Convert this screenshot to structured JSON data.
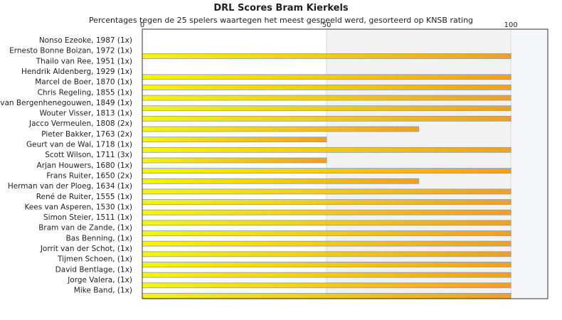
{
  "chart_data": {
    "type": "bar",
    "orientation": "horizontal",
    "title": "DRL Scores Bram Kierkels",
    "subtitle": "Percentages tegen de 25 spelers waartegen het meest gespeeld werd, gesorteerd op KNSB rating",
    "xlim": [
      0,
      110
    ],
    "x_ticks": [
      "0",
      "50",
      "100"
    ],
    "grid": "vertical",
    "legend": "none",
    "colors": {
      "bar_start": "#f5f50a",
      "bar_end": "#f0a020",
      "bar_border": "#8a9ab5",
      "band": "#f2f2f2",
      "band_right": "#f5f7fb"
    },
    "categories": [
      "Nonso Ezeoke, 1987 (1x)",
      "Ernesto Bonne Boizan, 1972 (1x)",
      "Thailo van Ree, 1951 (1x)",
      "Hendrik Aldenberg, 1929 (1x)",
      "Marcel de Boer, 1870 (1x)",
      "Chris Regeling, 1855 (1x)",
      "van Bergenhenegouwen, 1849 (1x)",
      "Wouter Visser, 1813 (1x)",
      "Jacco Vermeulen, 1808 (2x)",
      "Pieter Bakker, 1763 (2x)",
      "Geurt van de Wal, 1718 (1x)",
      "Scott Wilson, 1711 (3x)",
      "Arjan Houwers, 1680 (1x)",
      "Frans Ruiter, 1650 (2x)",
      "Herman van der Ploeg, 1634 (1x)",
      "René de Ruiter, 1555 (1x)",
      "Kees van Asperen, 1530 (1x)",
      "Simon Steier, 1511 (1x)",
      "Bram van de Zande,  (1x)",
      "Bas Benning,  (1x)",
      "Jorrit van der Schot,  (1x)",
      "Tijmen Schoen,  (1x)",
      "David Bentlage,  (1x)",
      "Jorge Valera,  (1x)",
      "Mike Band,  (1x)"
    ],
    "values": [
      0,
      100,
      0,
      100,
      100,
      100,
      100,
      100,
      75,
      50,
      100,
      50,
      100,
      75,
      100,
      100,
      100,
      100,
      100,
      100,
      100,
      100,
      100,
      100,
      100
    ]
  }
}
